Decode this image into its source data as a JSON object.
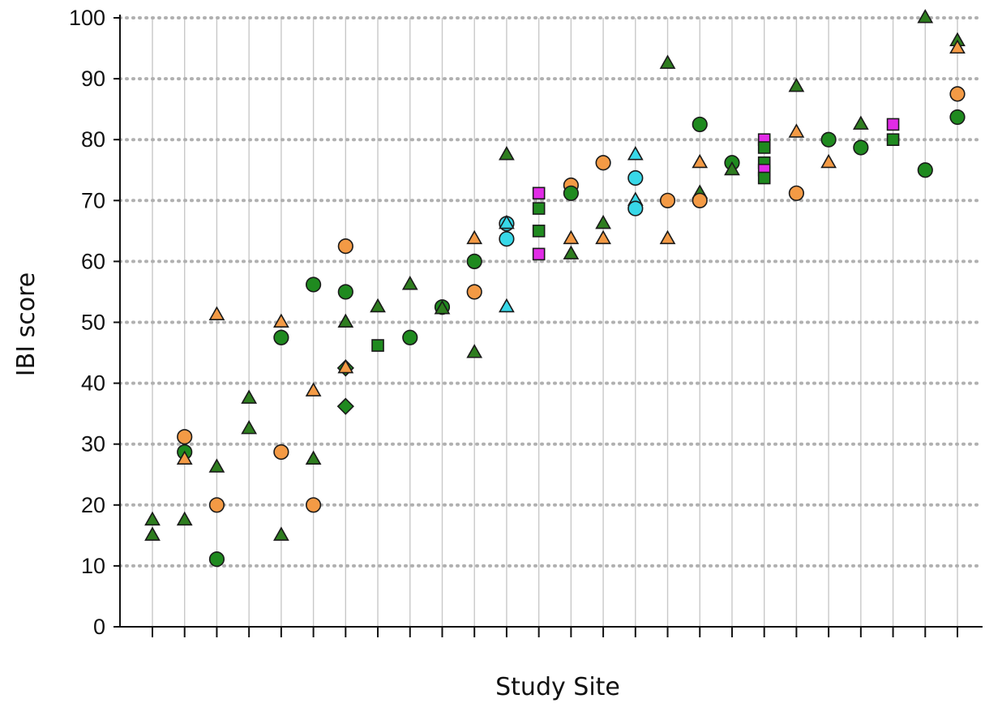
{
  "chart_data": {
    "type": "scatter",
    "title": "",
    "xlabel": "Study Site",
    "ylabel": "IBI score",
    "ylim": [
      0,
      100
    ],
    "yticks": [
      0,
      10,
      20,
      30,
      40,
      50,
      60,
      70,
      80,
      90,
      100
    ],
    "site_count": 26,
    "grid": "vertical solid lines at each site; horizontal dotted lines at each y tick",
    "legend": "none",
    "colors": {
      "dark_green": "#2e7d1f",
      "green": "#1f8a1f",
      "orange": "#f39a45",
      "cyan": "#38d8e8",
      "magenta": "#e12be6"
    },
    "points": [
      {
        "site": 1,
        "value": 17.5,
        "shape": "triangle",
        "color": "dark_green"
      },
      {
        "site": 1,
        "value": 15.0,
        "shape": "triangle",
        "color": "dark_green"
      },
      {
        "site": 2,
        "value": 31.2,
        "shape": "circle",
        "color": "orange"
      },
      {
        "site": 2,
        "value": 28.7,
        "shape": "circle",
        "color": "green"
      },
      {
        "site": 2,
        "value": 27.5,
        "shape": "triangle",
        "color": "orange"
      },
      {
        "site": 2,
        "value": 17.5,
        "shape": "triangle",
        "color": "dark_green"
      },
      {
        "site": 3,
        "value": 51.2,
        "shape": "triangle",
        "color": "orange"
      },
      {
        "site": 3,
        "value": 26.2,
        "shape": "triangle",
        "color": "dark_green"
      },
      {
        "site": 3,
        "value": 20.0,
        "shape": "circle",
        "color": "orange"
      },
      {
        "site": 3,
        "value": 11.1,
        "shape": "circle",
        "color": "green"
      },
      {
        "site": 4,
        "value": 37.5,
        "shape": "triangle",
        "color": "dark_green"
      },
      {
        "site": 4,
        "value": 32.5,
        "shape": "triangle",
        "color": "dark_green"
      },
      {
        "site": 5,
        "value": 50.0,
        "shape": "triangle",
        "color": "orange"
      },
      {
        "site": 5,
        "value": 47.5,
        "shape": "circle",
        "color": "green"
      },
      {
        "site": 5,
        "value": 28.7,
        "shape": "circle",
        "color": "orange"
      },
      {
        "site": 5,
        "value": 15.0,
        "shape": "triangle",
        "color": "dark_green"
      },
      {
        "site": 6,
        "value": 56.2,
        "shape": "circle",
        "color": "green"
      },
      {
        "site": 6,
        "value": 38.7,
        "shape": "triangle",
        "color": "orange"
      },
      {
        "site": 6,
        "value": 27.5,
        "shape": "triangle",
        "color": "dark_green"
      },
      {
        "site": 6,
        "value": 20.0,
        "shape": "circle",
        "color": "orange"
      },
      {
        "site": 7,
        "value": 62.5,
        "shape": "circle",
        "color": "orange"
      },
      {
        "site": 7,
        "value": 55.0,
        "shape": "circle",
        "color": "green"
      },
      {
        "site": 7,
        "value": 50.0,
        "shape": "triangle",
        "color": "dark_green"
      },
      {
        "site": 7,
        "value": 42.5,
        "shape": "diamond",
        "color": "green"
      },
      {
        "site": 7,
        "value": 42.5,
        "shape": "triangle",
        "color": "orange"
      },
      {
        "site": 7,
        "value": 36.2,
        "shape": "diamond",
        "color": "green"
      },
      {
        "site": 8,
        "value": 52.5,
        "shape": "triangle",
        "color": "dark_green"
      },
      {
        "site": 8,
        "value": 46.2,
        "shape": "square",
        "color": "green"
      },
      {
        "site": 9,
        "value": 56.2,
        "shape": "triangle",
        "color": "dark_green"
      },
      {
        "site": 9,
        "value": 47.5,
        "shape": "circle",
        "color": "green"
      },
      {
        "site": 10,
        "value": 52.5,
        "shape": "circle",
        "color": "green"
      },
      {
        "site": 10,
        "value": 52.2,
        "shape": "triangle",
        "color": "dark_green"
      },
      {
        "site": 11,
        "value": 63.7,
        "shape": "triangle",
        "color": "orange"
      },
      {
        "site": 11,
        "value": 60.0,
        "shape": "circle",
        "color": "green"
      },
      {
        "site": 11,
        "value": 55.0,
        "shape": "circle",
        "color": "orange"
      },
      {
        "site": 11,
        "value": 45.0,
        "shape": "triangle",
        "color": "dark_green"
      },
      {
        "site": 12,
        "value": 77.5,
        "shape": "triangle",
        "color": "dark_green"
      },
      {
        "site": 12,
        "value": 66.2,
        "shape": "circle",
        "color": "cyan"
      },
      {
        "site": 12,
        "value": 66.2,
        "shape": "triangle",
        "color": "cyan"
      },
      {
        "site": 12,
        "value": 63.7,
        "shape": "circle",
        "color": "cyan"
      },
      {
        "site": 12,
        "value": 52.5,
        "shape": "triangle",
        "color": "cyan"
      },
      {
        "site": 13,
        "value": 71.2,
        "shape": "square",
        "color": "magenta"
      },
      {
        "site": 13,
        "value": 68.7,
        "shape": "square",
        "color": "green"
      },
      {
        "site": 13,
        "value": 65.0,
        "shape": "square",
        "color": "green"
      },
      {
        "site": 13,
        "value": 61.2,
        "shape": "square",
        "color": "magenta"
      },
      {
        "site": 14,
        "value": 72.5,
        "shape": "circle",
        "color": "orange"
      },
      {
        "site": 14,
        "value": 71.2,
        "shape": "circle",
        "color": "green"
      },
      {
        "site": 14,
        "value": 63.7,
        "shape": "triangle",
        "color": "orange"
      },
      {
        "site": 14,
        "value": 61.2,
        "shape": "triangle",
        "color": "dark_green"
      },
      {
        "site": 15,
        "value": 76.2,
        "shape": "circle",
        "color": "orange"
      },
      {
        "site": 15,
        "value": 66.2,
        "shape": "triangle",
        "color": "dark_green"
      },
      {
        "site": 15,
        "value": 63.7,
        "shape": "triangle",
        "color": "orange"
      },
      {
        "site": 16,
        "value": 77.5,
        "shape": "triangle",
        "color": "cyan"
      },
      {
        "site": 16,
        "value": 73.7,
        "shape": "circle",
        "color": "cyan"
      },
      {
        "site": 16,
        "value": 70.0,
        "shape": "triangle",
        "color": "cyan"
      },
      {
        "site": 16,
        "value": 68.7,
        "shape": "circle",
        "color": "cyan"
      },
      {
        "site": 17,
        "value": 92.5,
        "shape": "triangle",
        "color": "dark_green"
      },
      {
        "site": 17,
        "value": 70.0,
        "shape": "circle",
        "color": "orange"
      },
      {
        "site": 17,
        "value": 63.7,
        "shape": "triangle",
        "color": "orange"
      },
      {
        "site": 18,
        "value": 82.5,
        "shape": "circle",
        "color": "green"
      },
      {
        "site": 18,
        "value": 76.2,
        "shape": "triangle",
        "color": "orange"
      },
      {
        "site": 18,
        "value": 71.2,
        "shape": "triangle",
        "color": "dark_green"
      },
      {
        "site": 18,
        "value": 70.0,
        "shape": "circle",
        "color": "orange"
      },
      {
        "site": 19,
        "value": 76.2,
        "shape": "circle",
        "color": "green"
      },
      {
        "site": 19,
        "value": 75.0,
        "shape": "triangle",
        "color": "dark_green"
      },
      {
        "site": 20,
        "value": 80.0,
        "shape": "square",
        "color": "magenta"
      },
      {
        "site": 20,
        "value": 78.7,
        "shape": "square",
        "color": "green"
      },
      {
        "site": 20,
        "value": 76.2,
        "shape": "square",
        "color": "green"
      },
      {
        "site": 20,
        "value": 75.0,
        "shape": "square",
        "color": "magenta"
      },
      {
        "site": 20,
        "value": 73.7,
        "shape": "square",
        "color": "green"
      },
      {
        "site": 21,
        "value": 88.7,
        "shape": "triangle",
        "color": "dark_green"
      },
      {
        "site": 21,
        "value": 81.2,
        "shape": "triangle",
        "color": "orange"
      },
      {
        "site": 21,
        "value": 71.2,
        "shape": "circle",
        "color": "orange"
      },
      {
        "site": 22,
        "value": 80.0,
        "shape": "circle",
        "color": "green"
      },
      {
        "site": 22,
        "value": 76.2,
        "shape": "triangle",
        "color": "orange"
      },
      {
        "site": 23,
        "value": 82.5,
        "shape": "triangle",
        "color": "dark_green"
      },
      {
        "site": 23,
        "value": 78.7,
        "shape": "circle",
        "color": "green"
      },
      {
        "site": 24,
        "value": 82.5,
        "shape": "square",
        "color": "magenta"
      },
      {
        "site": 24,
        "value": 80.0,
        "shape": "square",
        "color": "green"
      },
      {
        "site": 25,
        "value": 100.0,
        "shape": "triangle",
        "color": "dark_green"
      },
      {
        "site": 25,
        "value": 75.0,
        "shape": "circle",
        "color": "green"
      },
      {
        "site": 26,
        "value": 96.2,
        "shape": "triangle",
        "color": "dark_green"
      },
      {
        "site": 26,
        "value": 95.0,
        "shape": "triangle",
        "color": "orange"
      },
      {
        "site": 26,
        "value": 87.5,
        "shape": "circle",
        "color": "orange"
      },
      {
        "site": 26,
        "value": 83.7,
        "shape": "circle",
        "color": "green"
      }
    ]
  }
}
